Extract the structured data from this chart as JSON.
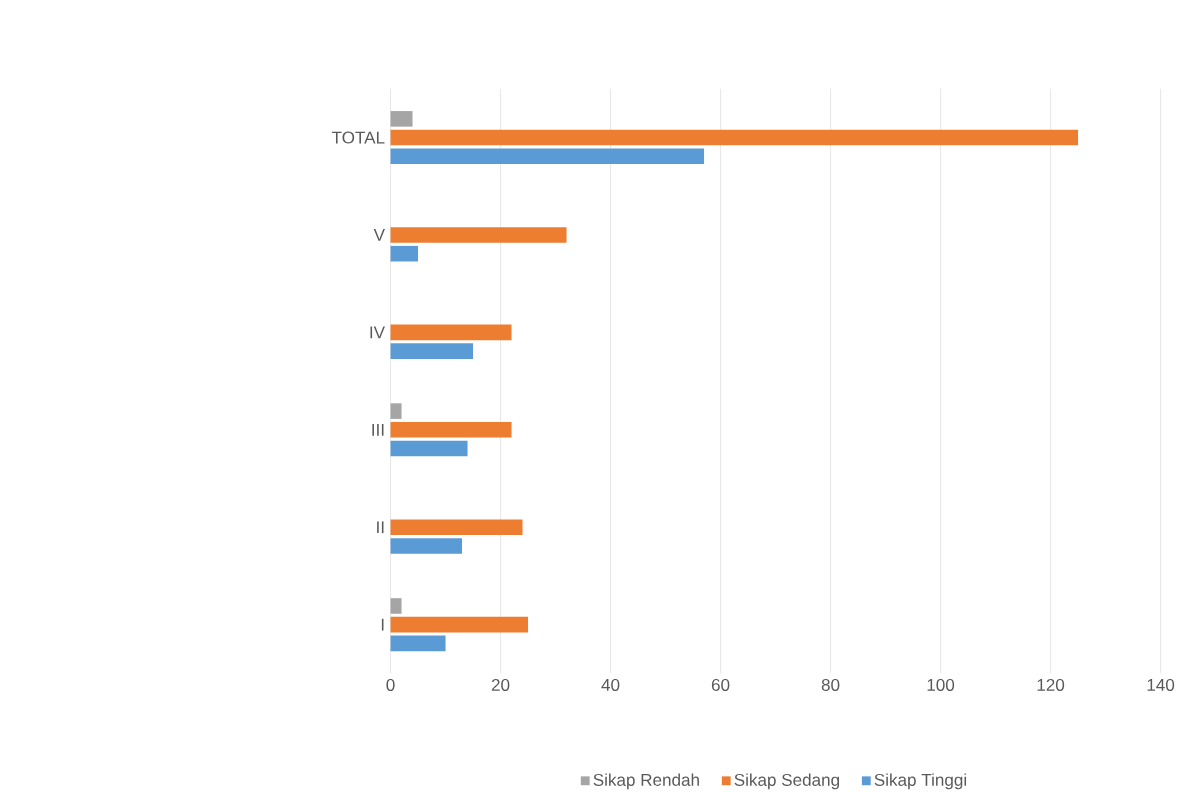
{
  "chart_data": {
    "type": "bar",
    "orientation": "horizontal",
    "categories": [
      "TOTAL",
      "V",
      "IV",
      "III",
      "II",
      "I"
    ],
    "series": [
      {
        "name": "Sikap Rendah",
        "color": "#a5a5a5",
        "values": [
          4,
          0,
          0,
          2,
          0,
          2
        ]
      },
      {
        "name": "Sikap Sedang",
        "color": "#ed7d31",
        "values": [
          125,
          32,
          22,
          22,
          24,
          25
        ]
      },
      {
        "name": "Sikap Tinggi",
        "color": "#5b9bd5",
        "values": [
          57,
          5,
          15,
          14,
          13,
          10
        ]
      }
    ],
    "xlim": [
      0,
      140
    ],
    "xticks": [
      0,
      20,
      40,
      60,
      80,
      100,
      120,
      140
    ],
    "grid": "x",
    "legend": "bottom"
  }
}
